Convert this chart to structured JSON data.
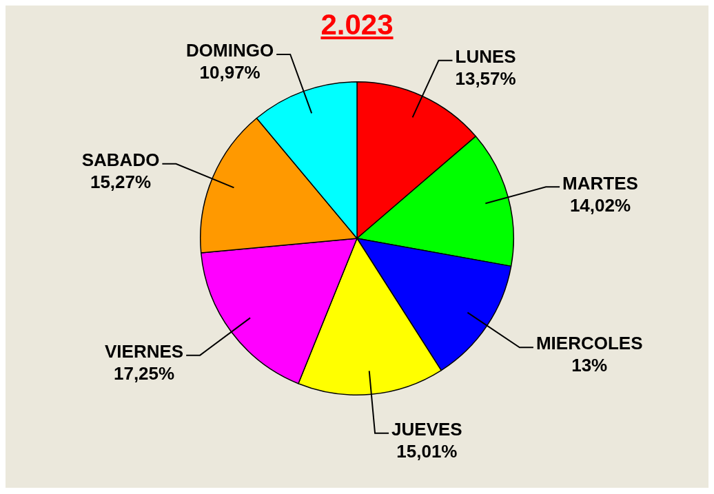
{
  "chart_data": {
    "type": "pie",
    "title": "2.023",
    "categories": [
      "LUNES",
      "MARTES",
      "MIERCOLES",
      "JUEVES",
      "VIERNES",
      "SABADO",
      "DOMINGO"
    ],
    "values": [
      13.57,
      14.02,
      13,
      15.01,
      17.25,
      15.27,
      10.97
    ],
    "value_labels": [
      "13,57%",
      "14,02%",
      "13%",
      "15,01%",
      "17,25%",
      "15,27%",
      "10,97%"
    ],
    "colors": [
      "#ff0000",
      "#00ff00",
      "#0000ff",
      "#ffff00",
      "#ff00ff",
      "#ff9900",
      "#00ffff"
    ],
    "legend": false
  }
}
